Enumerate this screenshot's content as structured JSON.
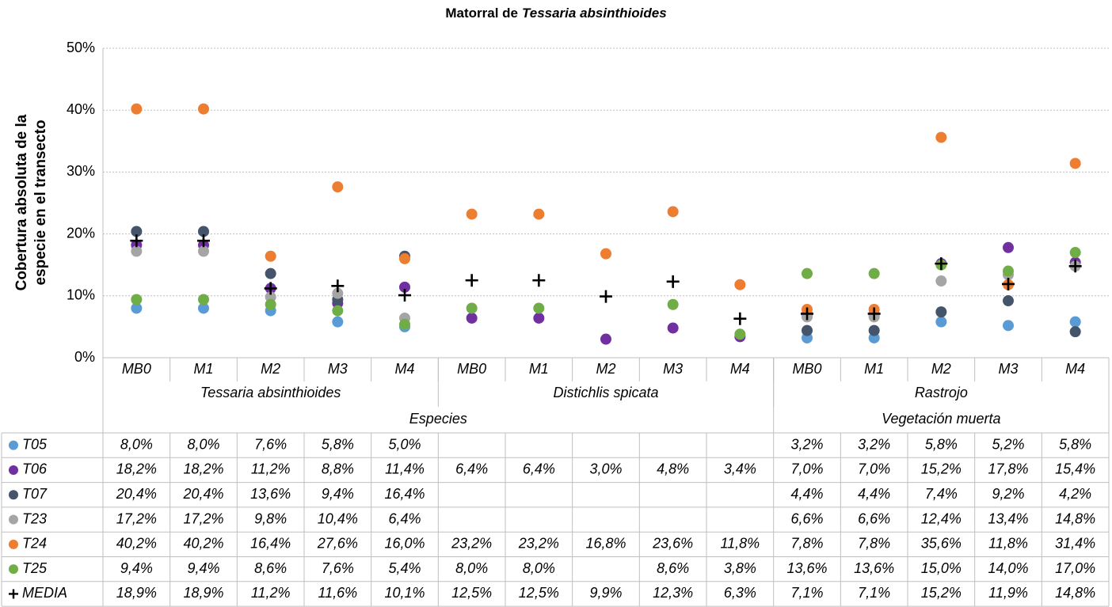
{
  "chart_data": {
    "type": "scatter",
    "title": {
      "text": "Matorral de",
      "italic": "Tessaria absinthioides"
    },
    "ylabel": [
      "Cobertura absoluta de la",
      "especie en el transecto"
    ],
    "categories": [
      "MB0",
      "M1",
      "M2",
      "M3",
      "M4",
      "MB0",
      "M1",
      "M2",
      "M3",
      "M4",
      "MB0",
      "M1",
      "M2",
      "M3",
      "M4"
    ],
    "groups": [
      {
        "label": "Tessaria absinthioides",
        "span": 5
      },
      {
        "label": "Distichlis spicata",
        "span": 5
      },
      {
        "label": "Rastrojo",
        "span": 5
      }
    ],
    "supergroups": [
      {
        "label": "Especies",
        "span": 10
      },
      {
        "label": "Vegetación muerta",
        "span": 5
      }
    ],
    "ylim": [
      0,
      50
    ],
    "yticks": [
      {
        "value": 0,
        "label": "0%"
      },
      {
        "value": 10,
        "label": "10%"
      },
      {
        "value": 20,
        "label": "20%"
      },
      {
        "value": 30,
        "label": "30%"
      },
      {
        "value": 40,
        "label": "40%"
      },
      {
        "value": 50,
        "label": "50%"
      }
    ],
    "grid": true,
    "series": [
      {
        "name": "T05",
        "color": "#5b9bd5",
        "marker": "circle",
        "values": [
          8.0,
          8.0,
          7.6,
          5.8,
          5.0,
          null,
          null,
          null,
          null,
          null,
          3.2,
          3.2,
          5.8,
          5.2,
          5.8
        ],
        "value_labels": [
          "8,0%",
          "8,0%",
          "7,6%",
          "5,8%",
          "5,0%",
          null,
          null,
          null,
          null,
          null,
          "3,2%",
          "3,2%",
          "5,8%",
          "5,2%",
          "5,8%"
        ]
      },
      {
        "name": "T06",
        "color": "#7030a0",
        "marker": "circle",
        "values": [
          18.2,
          18.2,
          11.2,
          8.8,
          11.4,
          6.4,
          6.4,
          3.0,
          4.8,
          3.4,
          7.0,
          7.0,
          15.2,
          17.8,
          15.4
        ],
        "value_labels": [
          "18,2%",
          "18,2%",
          "11,2%",
          "8,8%",
          "11,4%",
          "6,4%",
          "6,4%",
          "3,0%",
          "4,8%",
          "3,4%",
          "7,0%",
          "7,0%",
          "15,2%",
          "17,8%",
          "15,4%"
        ]
      },
      {
        "name": "T07",
        "color": "#44546a",
        "marker": "circle",
        "values": [
          20.4,
          20.4,
          13.6,
          9.4,
          16.4,
          null,
          null,
          null,
          null,
          null,
          4.4,
          4.4,
          7.4,
          9.2,
          4.2
        ],
        "value_labels": [
          "20,4%",
          "20,4%",
          "13,6%",
          "9,4%",
          "16,4%",
          null,
          null,
          null,
          null,
          null,
          "4,4%",
          "4,4%",
          "7,4%",
          "9,2%",
          "4,2%"
        ]
      },
      {
        "name": "T23",
        "color": "#a5a5a5",
        "marker": "circle",
        "values": [
          17.2,
          17.2,
          9.8,
          10.4,
          6.4,
          null,
          null,
          null,
          null,
          null,
          6.6,
          6.6,
          12.4,
          13.4,
          14.8
        ],
        "value_labels": [
          "17,2%",
          "17,2%",
          "9,8%",
          "10,4%",
          "6,4%",
          null,
          null,
          null,
          null,
          null,
          "6,6%",
          "6,6%",
          "12,4%",
          "13,4%",
          "14,8%"
        ]
      },
      {
        "name": "T24",
        "color": "#ed7d31",
        "marker": "circle",
        "values": [
          40.2,
          40.2,
          16.4,
          27.6,
          16.0,
          23.2,
          23.2,
          16.8,
          23.6,
          11.8,
          7.8,
          7.8,
          35.6,
          11.8,
          31.4
        ],
        "value_labels": [
          "40,2%",
          "40,2%",
          "16,4%",
          "27,6%",
          "16,0%",
          "23,2%",
          "23,2%",
          "16,8%",
          "23,6%",
          "11,8%",
          "7,8%",
          "7,8%",
          "35,6%",
          "11,8%",
          "31,4%"
        ]
      },
      {
        "name": "T25",
        "color": "#70ad47",
        "marker": "circle",
        "values": [
          9.4,
          9.4,
          8.6,
          7.6,
          5.4,
          8.0,
          8.0,
          null,
          8.6,
          3.8,
          13.6,
          13.6,
          15.0,
          14.0,
          17.0
        ],
        "value_labels": [
          "9,4%",
          "9,4%",
          "8,6%",
          "7,6%",
          "5,4%",
          "8,0%",
          "8,0%",
          null,
          "8,6%",
          "3,8%",
          "13,6%",
          "13,6%",
          "15,0%",
          "14,0%",
          "17,0%"
        ]
      },
      {
        "name": "MEDIA",
        "color": "#000000",
        "marker": "plus",
        "values": [
          18.9,
          18.9,
          11.2,
          11.6,
          10.1,
          12.5,
          12.5,
          9.9,
          12.3,
          6.3,
          7.1,
          7.1,
          15.2,
          11.9,
          14.8
        ],
        "value_labels": [
          "18,9%",
          "18,9%",
          "11,2%",
          "11,6%",
          "10,1%",
          "12,5%",
          "12,5%",
          "9,9%",
          "12,3%",
          "6,3%",
          "7,1%",
          "7,1%",
          "15,2%",
          "11,9%",
          "14,8%"
        ]
      }
    ]
  }
}
